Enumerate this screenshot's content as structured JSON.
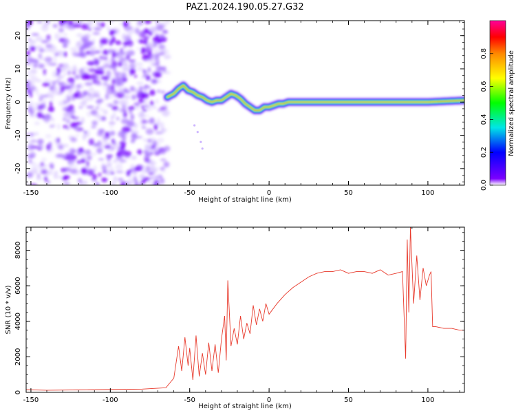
{
  "title": "PAZ1.2024.190.05.27.G32",
  "chart_data": [
    {
      "type": "heatmap",
      "xlabel": "Height of straight line (km)",
      "ylabel": "Frequency (Hz)",
      "xlim": [
        -153,
        123
      ],
      "ylim": [
        -25,
        24.5
      ],
      "xticks": [
        -150,
        -100,
        -50,
        0,
        50,
        100
      ],
      "yticks": [
        -20,
        -10,
        0,
        10,
        20
      ],
      "colorbar": {
        "label": "Normalized spectral amplitude",
        "range": [
          0,
          1
        ],
        "ticks": [
          0.0,
          0.2,
          0.4,
          0.6,
          0.8
        ],
        "colors": [
          "#ffffff",
          "#7b00ff",
          "#0000ff",
          "#00e6e6",
          "#00ff00",
          "#ffff00",
          "#ff8800",
          "#ff0000",
          "#ff0099"
        ]
      },
      "noise_region_x": [
        -153,
        -64
      ],
      "ridge": {
        "x": [
          -64,
          -60,
          -57,
          -54,
          -51,
          -48,
          -45,
          -42,
          -39,
          -36,
          -33,
          -30,
          -27,
          -24,
          -21,
          -18,
          -15,
          -12,
          -9,
          -6,
          -3,
          0,
          3,
          6,
          9,
          12,
          20,
          40,
          60,
          80,
          100,
          123
        ],
        "y": [
          1.5,
          2.5,
          4,
          5,
          3.5,
          3,
          2,
          1.5,
          0.5,
          0,
          0.5,
          0.5,
          1.5,
          2.5,
          2,
          1,
          -0.5,
          -1.5,
          -2.5,
          -2.5,
          -1.5,
          -1.5,
          -1,
          -0.5,
          -0.5,
          0,
          0,
          0,
          0,
          0,
          0,
          0.5
        ]
      }
    },
    {
      "type": "line",
      "xlabel": "Height of straight line (km)",
      "ylabel": "SNR (10 * v/v)",
      "xlim": [
        -153,
        123
      ],
      "ylim": [
        0,
        9300
      ],
      "xticks": [
        -150,
        -100,
        -50,
        0,
        50,
        100
      ],
      "yticks": [
        0,
        2000,
        4000,
        6000,
        8000
      ],
      "color": "#e8392b",
      "series": [
        {
          "x": [
            -153,
            -140,
            -120,
            -100,
            -80,
            -65,
            -60,
            -57,
            -55,
            -53,
            -51,
            -50,
            -48,
            -46,
            -44,
            -42,
            -40,
            -38,
            -36,
            -34,
            -32,
            -30,
            -28,
            -27,
            -26,
            -24,
            -22,
            -20,
            -18,
            -16,
            -14,
            -12,
            -10,
            -8,
            -6,
            -4,
            -2,
            0,
            5,
            10,
            15,
            20,
            25,
            30,
            35,
            40,
            45,
            50,
            55,
            60,
            65,
            70,
            75,
            80,
            84,
            86,
            87,
            88,
            89,
            91,
            93,
            95,
            97,
            99,
            101,
            102,
            103,
            105,
            110,
            115,
            120,
            123
          ],
          "y": [
            150,
            120,
            140,
            160,
            180,
            260,
            800,
            2600,
            1200,
            3100,
            1500,
            2500,
            700,
            3200,
            900,
            2200,
            1000,
            2800,
            1200,
            2700,
            1100,
            3000,
            4300,
            1800,
            6300,
            2600,
            3600,
            2700,
            4300,
            3000,
            3900,
            3300,
            4900,
            3800,
            4700,
            4000,
            5000,
            4400,
            5000,
            5500,
            5900,
            6200,
            6500,
            6700,
            6800,
            6800,
            6900,
            6700,
            6800,
            6800,
            6700,
            6900,
            6600,
            6700,
            6800,
            1900,
            8600,
            4500,
            9300,
            5000,
            7700,
            5200,
            7000,
            6000,
            6600,
            6800,
            3700,
            3700,
            3600,
            3600,
            3500,
            3500
          ]
        }
      ]
    }
  ]
}
